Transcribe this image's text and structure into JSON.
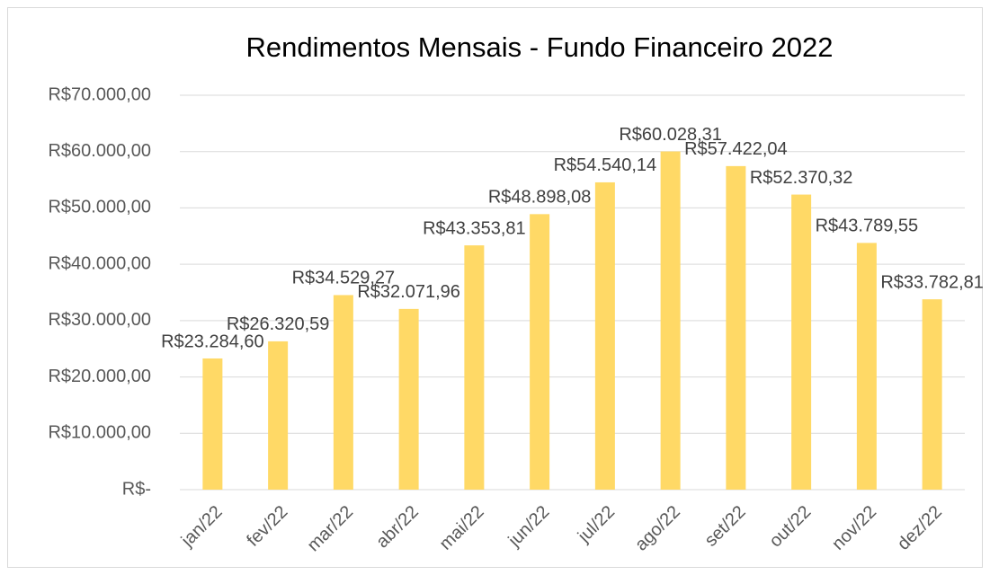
{
  "chart_data": {
    "type": "bar",
    "title": "Rendimentos Mensais - Fundo Financeiro 2022",
    "categories": [
      "jan/22",
      "fev/22",
      "mar/22",
      "abr/22",
      "mai/22",
      "jun/22",
      "jul/22",
      "ago/22",
      "set/22",
      "out/22",
      "nov/22",
      "dez/22"
    ],
    "values": [
      23284.6,
      26320.59,
      34529.27,
      32071.96,
      43353.81,
      48898.08,
      54540.14,
      60028.31,
      57422.04,
      52370.32,
      43789.55,
      33782.81
    ],
    "value_labels": [
      "R$23.284,60",
      "R$26.320,59",
      "R$34.529,27",
      "R$32.071,96",
      "R$43.353,81",
      "R$48.898,08",
      "R$54.540,14",
      "R$60.028,31",
      "R$57.422,04",
      "R$52.370,32",
      "R$43.789,55",
      "R$33.782,81"
    ],
    "color": "#ffd966",
    "ylim": [
      0,
      70000
    ],
    "yticks": [
      {
        "value": 0,
        "label": "R$-"
      },
      {
        "value": 10000,
        "label": "R$10.000,00"
      },
      {
        "value": 20000,
        "label": "R$20.000,00"
      },
      {
        "value": 30000,
        "label": "R$30.000,00"
      },
      {
        "value": 40000,
        "label": "R$40.000,00"
      },
      {
        "value": 50000,
        "label": "R$50.000,00"
      },
      {
        "value": 60000,
        "label": "R$60.000,00"
      },
      {
        "value": 70000,
        "label": "R$70.000,00"
      }
    ],
    "grid": true
  }
}
